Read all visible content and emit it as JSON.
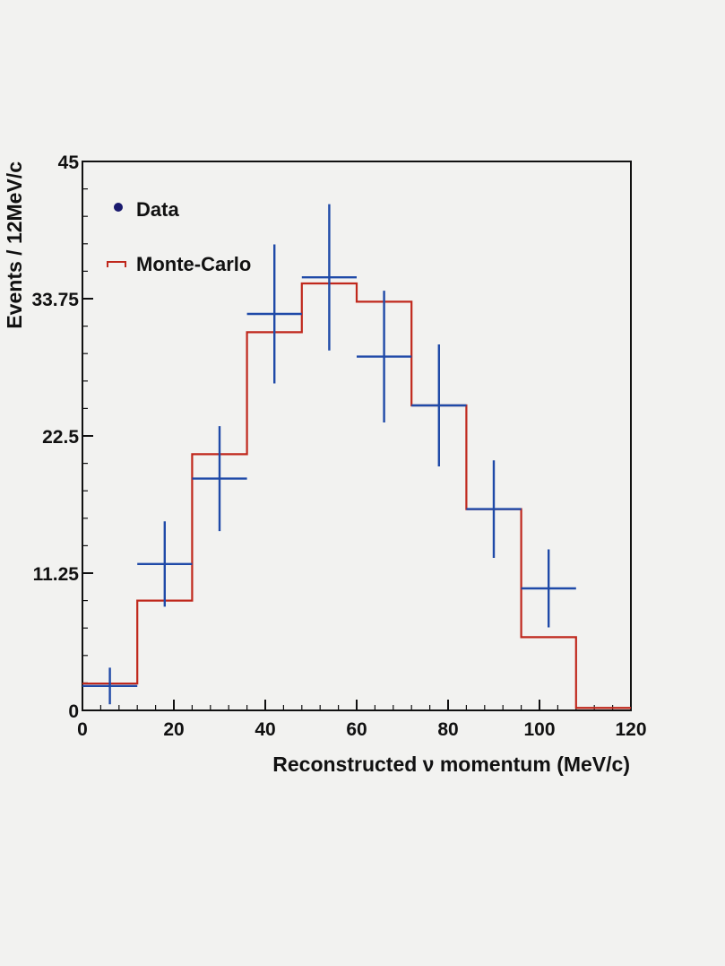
{
  "chart_data": {
    "type": "histogram",
    "xlabel": "Reconstructed ν momentum (MeV/c)",
    "ylabel": "Events / 12MeV/c",
    "xlim": [
      0,
      120
    ],
    "ylim": [
      0,
      45
    ],
    "x_ticks": [
      "0",
      "20",
      "40",
      "60",
      "80",
      "100",
      "120"
    ],
    "y_ticks": [
      "0",
      "11.25",
      "22.5",
      "33.75",
      "45"
    ],
    "x_tick_values": [
      0,
      20,
      40,
      60,
      80,
      100,
      120
    ],
    "y_tick_values": [
      0,
      11.25,
      22.5,
      33.75,
      45
    ],
    "bin_edges": [
      0,
      12,
      24,
      36,
      48,
      60,
      72,
      84,
      96,
      108,
      120
    ],
    "legend": {
      "placement": "top-left",
      "entries": [
        {
          "label": "Data",
          "color": "#1a1a6e",
          "marker": "dot"
        },
        {
          "label": "Monte-Carlo",
          "color": "#c0281c",
          "marker": "step"
        }
      ]
    },
    "series": [
      {
        "name": "Data",
        "kind": "points-with-errors",
        "color": "#1f4aa8",
        "x": [
          6,
          18,
          30,
          42,
          54,
          66,
          78,
          90,
          102
        ],
        "y": [
          2,
          12,
          19,
          32.5,
          35.5,
          29,
          25,
          16.5,
          10
        ],
        "yerr": [
          1.5,
          3.5,
          4.3,
          5.7,
          6,
          5.4,
          5,
          4,
          3.2
        ]
      },
      {
        "name": "Monte-Carlo",
        "kind": "step",
        "color": "#c0281c",
        "values": [
          2.2,
          9,
          21,
          31,
          35,
          33.5,
          25,
          16.5,
          6,
          0.2
        ]
      }
    ]
  }
}
